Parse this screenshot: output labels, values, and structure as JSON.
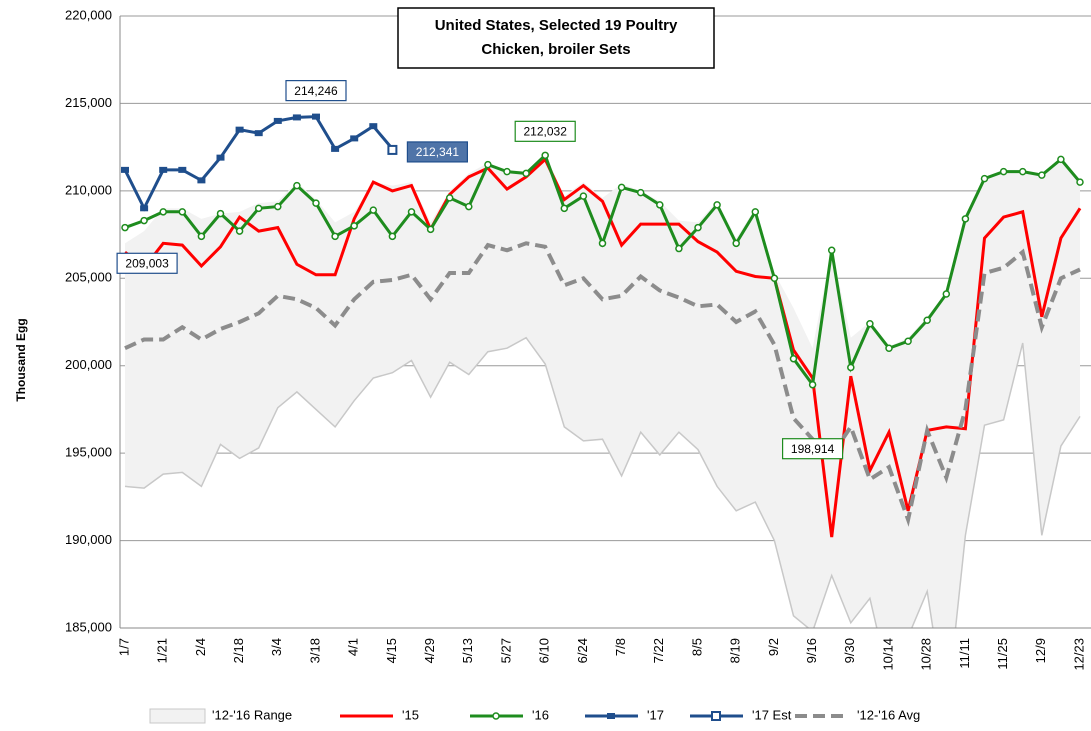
{
  "chart_data": {
    "type": "line",
    "title": "United States, Selected 19 Poultry",
    "subtitle": "Chicken, broiler Sets",
    "y_label": "Thousand Egg",
    "ylim": [
      185000,
      220000
    ],
    "yticks": [
      {
        "value": 185000,
        "label": "185,000"
      },
      {
        "value": 190000,
        "label": "190,000"
      },
      {
        "value": 195000,
        "label": "195,000"
      },
      {
        "value": 200000,
        "label": "200,000"
      },
      {
        "value": 205000,
        "label": "205,000"
      },
      {
        "value": 210000,
        "label": "210,000"
      },
      {
        "value": 215000,
        "label": "215,000"
      },
      {
        "value": 220000,
        "label": "220,000"
      }
    ],
    "grid": true,
    "categories": [
      "1/7",
      null,
      "1/21",
      null,
      "2/4",
      null,
      "2/18",
      null,
      "3/4",
      null,
      "3/18",
      null,
      "4/1",
      null,
      "4/15",
      null,
      "4/29",
      null,
      "5/13",
      null,
      "5/27",
      null,
      "6/10",
      null,
      "6/24",
      null,
      "7/8",
      null,
      "7/22",
      null,
      "8/5",
      null,
      "8/19",
      null,
      "9/2",
      null,
      "9/16",
      null,
      "9/30",
      null,
      "10/14",
      null,
      "10/28",
      null,
      "11/11",
      null,
      "11/25",
      null,
      "12/9",
      null,
      "12/23"
    ],
    "series": [
      {
        "name": "'12-'16 Range",
        "style": "range",
        "color": "#c8c8c8",
        "fill": "#f2f2f2",
        "low": [
          193100,
          193000,
          193800,
          193900,
          193100,
          195500,
          194700,
          195300,
          197600,
          198500,
          197500,
          196500,
          198000,
          199300,
          199600,
          200300,
          198200,
          200200,
          199500,
          200800,
          201000,
          201600,
          200100,
          196500,
          195700,
          195800,
          193700,
          196200,
          194900,
          196200,
          195200,
          193100,
          191700,
          192200,
          190000,
          185700,
          184800,
          188000,
          185300,
          186700,
          182000,
          184500,
          187100,
          180000,
          190300,
          196600,
          196900,
          201300,
          190300,
          195400,
          197100
        ],
        "high": [
          207000,
          207700,
          209000,
          209000,
          208400,
          208700,
          208800,
          209300,
          209400,
          210500,
          209500,
          208200,
          208800,
          210500,
          210300,
          210500,
          208200,
          210000,
          211000,
          211600,
          211200,
          211100,
          212100,
          209700,
          210500,
          209600,
          210400,
          210000,
          209400,
          208300,
          208200,
          209400,
          207300,
          209000,
          205300,
          203300,
          201000,
          206700,
          201600,
          202500,
          201100,
          201600,
          202800,
          204200,
          208600,
          210800,
          211200,
          211200,
          211000,
          211900,
          210600
        ]
      },
      {
        "name": "'15",
        "style": "line",
        "color": "#ff0000",
        "values": [
          206500,
          205600,
          207000,
          206900,
          205700,
          206800,
          208500,
          207700,
          207900,
          205800,
          205200,
          205200,
          208400,
          210500,
          210000,
          210300,
          207800,
          209800,
          210800,
          211300,
          210100,
          210800,
          211800,
          209500,
          210300,
          209400,
          206900,
          208100,
          208100,
          208100,
          207100,
          206500,
          205400,
          205100,
          205000,
          200900,
          199300,
          190200,
          199400,
          194000,
          196200,
          191700,
          196300,
          196500,
          196400,
          207300,
          208500,
          208800,
          202800,
          207300,
          209000
        ]
      },
      {
        "name": "'16",
        "style": "line",
        "marker": "circle",
        "color": "#1e8c1e",
        "values": [
          207900,
          208300,
          208800,
          208800,
          207400,
          208700,
          207700,
          209000,
          209100,
          210300,
          209300,
          207400,
          208000,
          208900,
          207400,
          208800,
          207800,
          209600,
          209100,
          211500,
          211100,
          211000,
          212032,
          209000,
          209700,
          207000,
          210200,
          209900,
          209200,
          206700,
          207900,
          209200,
          207000,
          208800,
          205000,
          200400,
          198914,
          206600,
          199900,
          202400,
          201000,
          201400,
          202600,
          204100,
          208400,
          210700,
          211100,
          211100,
          210900,
          211800,
          210500
        ],
        "value_labels": [
          null,
          null,
          null,
          null,
          null,
          null,
          null,
          null,
          null,
          null,
          null,
          null,
          null,
          null,
          null,
          null,
          null,
          null,
          null,
          null,
          null,
          null,
          "212,032",
          null,
          null,
          null,
          null,
          null,
          null,
          null,
          null,
          null,
          null,
          null,
          null,
          null,
          "198,914",
          null,
          null,
          null,
          null,
          null,
          null,
          null,
          null,
          null,
          null,
          null,
          null,
          null,
          null
        ]
      },
      {
        "name": "'17",
        "style": "line",
        "marker": "bar",
        "color": "#1f4e8c",
        "values": [
          211200,
          209003,
          211200,
          211200,
          210600,
          211900,
          213500,
          213300,
          214000,
          214200,
          214246,
          212400,
          213000,
          213700,
          212400,
          null,
          null,
          null,
          null,
          null,
          null,
          null,
          null,
          null,
          null,
          null,
          null,
          null,
          null,
          null,
          null,
          null,
          null,
          null,
          null,
          null,
          null,
          null,
          null,
          null,
          null,
          null,
          null,
          null,
          null,
          null,
          null,
          null,
          null,
          null,
          null
        ],
        "value_labels": [
          null,
          "209,003",
          null,
          null,
          null,
          null,
          null,
          null,
          null,
          null,
          "214,246",
          null,
          null,
          null,
          null,
          null,
          null,
          null,
          null,
          null,
          null,
          null,
          null,
          null,
          null,
          null,
          null,
          null,
          null,
          null,
          null,
          null,
          null,
          null,
          null,
          null,
          null,
          null,
          null,
          null,
          null,
          null,
          null,
          null,
          null,
          null,
          null,
          null,
          null,
          null,
          null
        ]
      },
      {
        "name": "'17 Est",
        "style": "line",
        "marker": "square",
        "color": "#1f4e8c",
        "label_fill": "#4f74a8",
        "values": [
          null,
          null,
          null,
          null,
          null,
          null,
          null,
          null,
          null,
          null,
          null,
          null,
          null,
          null,
          212341,
          null,
          null,
          null,
          null,
          null,
          null,
          null,
          null,
          null,
          null,
          null,
          null,
          null,
          null,
          null,
          null,
          null,
          null,
          null,
          null,
          null,
          null,
          null,
          null,
          null,
          null,
          null,
          null,
          null,
          null,
          null,
          null,
          null,
          null,
          null,
          null
        ],
        "value_labels": [
          null,
          null,
          null,
          null,
          null,
          null,
          null,
          null,
          null,
          null,
          null,
          null,
          null,
          null,
          "212,341",
          null,
          null,
          null,
          null,
          null,
          null,
          null,
          null,
          null,
          null,
          null,
          null,
          null,
          null,
          null,
          null,
          null,
          null,
          null,
          null,
          null,
          null,
          null,
          null,
          null,
          null,
          null,
          null,
          null,
          null,
          null,
          null,
          null,
          null,
          null,
          null
        ]
      },
      {
        "name": "'12-'16 Avg",
        "style": "line",
        "dash": true,
        "color": "#8c8c8c",
        "values": [
          201000,
          201500,
          201500,
          202200,
          201500,
          202100,
          202500,
          203000,
          204000,
          203800,
          203300,
          202300,
          203800,
          204800,
          204900,
          205200,
          203800,
          205300,
          205300,
          206900,
          206600,
          207000,
          206800,
          204600,
          205000,
          203800,
          204000,
          205100,
          204300,
          203900,
          203400,
          203500,
          202500,
          203100,
          201200,
          197000,
          195800,
          194900,
          196500,
          193500,
          194200,
          191200,
          196300,
          193600,
          197500,
          205300,
          205600,
          206500,
          202200,
          205000,
          205500
        ]
      }
    ]
  }
}
